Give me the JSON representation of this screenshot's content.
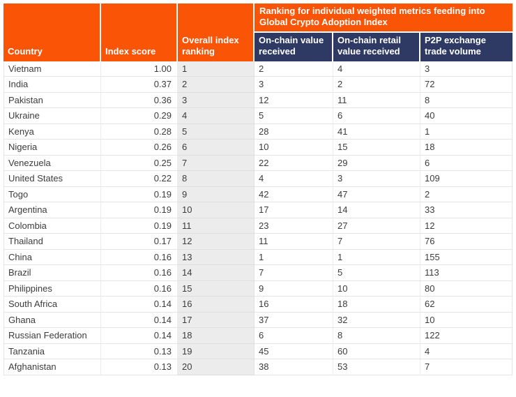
{
  "colors": {
    "header_orange": "#FA5507",
    "header_navy": "#2E3A64",
    "ranking_column_bg": "#ECECEC",
    "body_text": "#3C3C3C",
    "grid_line": "#E4E4E4"
  },
  "chart_data": {
    "type": "table",
    "group_header": "Ranking for individual weighted metrics feeding into Global Crypto Adoption Index",
    "columns": [
      "Country",
      "Index score",
      "Overall index ranking",
      "On-chain value received",
      "On-chain retail value received",
      "P2P exchange trade volume"
    ],
    "rows": [
      [
        "Vietnam",
        "1.00",
        "1",
        "2",
        "4",
        "3"
      ],
      [
        "India",
        "0.37",
        "2",
        "3",
        "2",
        "72"
      ],
      [
        "Pakistan",
        "0.36",
        "3",
        "12",
        "11",
        "8"
      ],
      [
        "Ukraine",
        "0.29",
        "4",
        "5",
        "6",
        "40"
      ],
      [
        "Kenya",
        "0.28",
        "5",
        "28",
        "41",
        "1"
      ],
      [
        "Nigeria",
        "0.26",
        "6",
        "10",
        "15",
        "18"
      ],
      [
        "Venezuela",
        "0.25",
        "7",
        "22",
        "29",
        "6"
      ],
      [
        "United States",
        "0.22",
        "8",
        "4",
        "3",
        "109"
      ],
      [
        "Togo",
        "0.19",
        "9",
        "42",
        "47",
        "2"
      ],
      [
        "Argentina",
        "0.19",
        "10",
        "17",
        "14",
        "33"
      ],
      [
        "Colombia",
        "0.19",
        "11",
        "23",
        "27",
        "12"
      ],
      [
        "Thailand",
        "0.17",
        "12",
        "11",
        "7",
        "76"
      ],
      [
        "China",
        "0.16",
        "13",
        "1",
        "1",
        "155"
      ],
      [
        "Brazil",
        "0.16",
        "14",
        "7",
        "5",
        "113"
      ],
      [
        "Philippines",
        "0.16",
        "15",
        "9",
        "10",
        "80"
      ],
      [
        "South Africa",
        "0.14",
        "16",
        "16",
        "18",
        "62"
      ],
      [
        "Ghana",
        "0.14",
        "17",
        "37",
        "32",
        "10"
      ],
      [
        "Russian Federation",
        "0.14",
        "18",
        "6",
        "8",
        "122"
      ],
      [
        "Tanzania",
        "0.13",
        "19",
        "45",
        "60",
        "4"
      ],
      [
        "Afghanistan",
        "0.13",
        "20",
        "38",
        "53",
        "7"
      ]
    ]
  }
}
